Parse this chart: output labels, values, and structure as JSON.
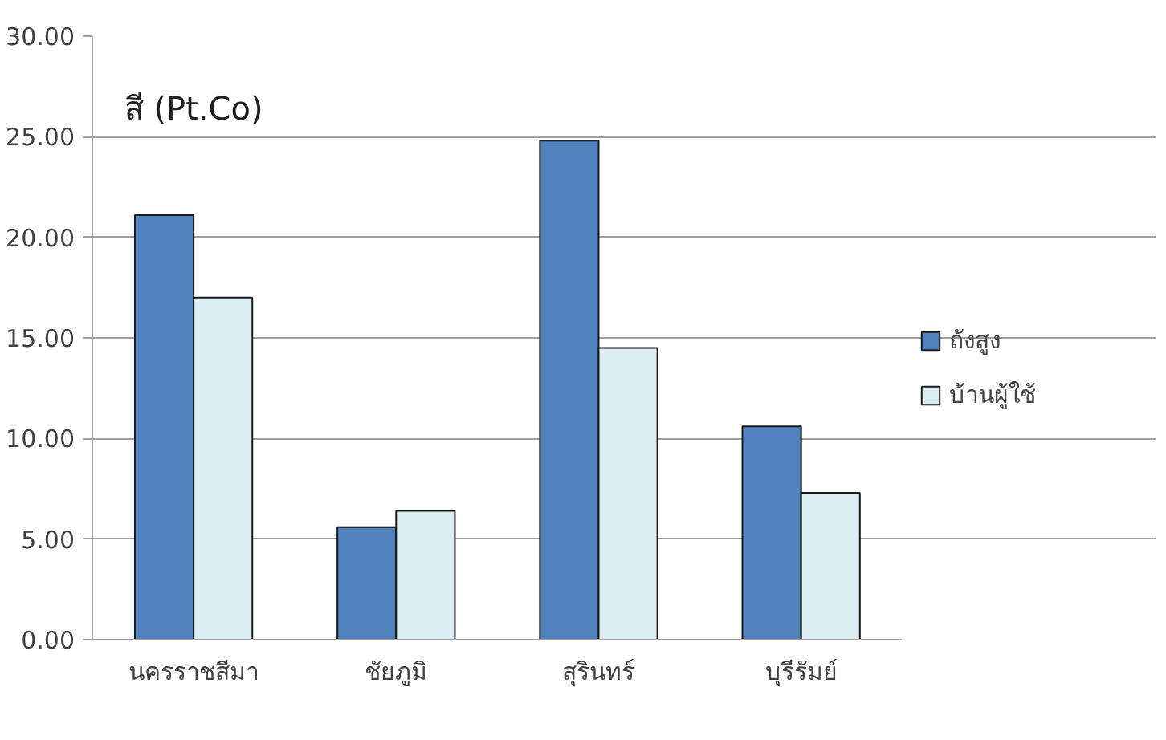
{
  "chart_data": {
    "type": "bar",
    "title": "สี (Pt.Co)",
    "categories": [
      "นครราชสีมา",
      "ชัยภูมิ",
      "สุรินทร์",
      "บุรีรัมย์"
    ],
    "series": [
      {
        "name": "ถังสูง",
        "color": "#4f81bd",
        "values": [
          21.1,
          5.6,
          24.8,
          10.6
        ]
      },
      {
        "name": "บ้านผู้ใช้",
        "color": "#dbeef4",
        "values": [
          17.0,
          6.4,
          14.5,
          7.3
        ]
      }
    ],
    "ylim": [
      0,
      30
    ],
    "yticks": [
      {
        "value": 0,
        "label": "0.00"
      },
      {
        "value": 5,
        "label": "5.00"
      },
      {
        "value": 10,
        "label": "10.00"
      },
      {
        "value": 15,
        "label": "15.00"
      },
      {
        "value": 20,
        "label": "20.00"
      },
      {
        "value": 25,
        "label": "25.00"
      },
      {
        "value": 30,
        "label": "30.00"
      }
    ],
    "grid": "y",
    "legend": "right"
  }
}
